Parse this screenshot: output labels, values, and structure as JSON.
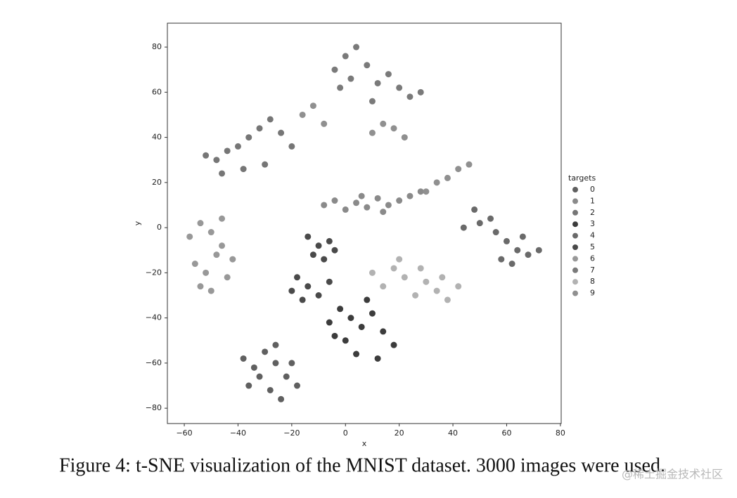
{
  "chart_data": {
    "type": "scatter",
    "x_label": "x",
    "y_label": "y",
    "xlim": [
      -66.3,
      80.3
    ],
    "ylim": [
      -86.8,
      90.6
    ],
    "xticks": [
      {
        "value": -60,
        "label": "−60"
      },
      {
        "value": -40,
        "label": "−40"
      },
      {
        "value": -20,
        "label": "−20"
      },
      0,
      20,
      40,
      60,
      80
    ],
    "yticks": [
      {
        "value": -80,
        "label": "−80"
      },
      {
        "value": -60,
        "label": "−60"
      },
      {
        "value": -40,
        "label": "−40"
      },
      {
        "value": -20,
        "label": "−20"
      },
      0,
      20,
      40,
      60,
      80
    ],
    "legend_title": "targets",
    "legend": "right",
    "series": [
      {
        "name": "0",
        "color": "#606060",
        "x": [
          -38,
          -34,
          -30,
          -26,
          -22,
          -18,
          -36,
          -28,
          -24,
          -20,
          -32,
          -26
        ],
        "y": [
          -58,
          -62,
          -55,
          -60,
          -66,
          -70,
          -70,
          -72,
          -76,
          -60,
          -66,
          -52
        ]
      },
      {
        "name": "1",
        "color": "#8a8a8a",
        "x": [
          -8,
          -4,
          0,
          4,
          8,
          12,
          16,
          20,
          24,
          28,
          6,
          14
        ],
        "y": [
          10,
          12,
          8,
          11,
          9,
          13,
          10,
          12,
          14,
          16,
          14,
          7
        ]
      },
      {
        "name": "2",
        "color": "#767676",
        "x": [
          -52,
          -48,
          -44,
          -40,
          -36,
          -32,
          -28,
          -24,
          -20,
          -30,
          -38,
          -46
        ],
        "y": [
          32,
          30,
          34,
          36,
          40,
          44,
          48,
          42,
          36,
          28,
          26,
          24
        ]
      },
      {
        "name": "3",
        "color": "#3c3c3c",
        "x": [
          -6,
          -2,
          2,
          6,
          10,
          14,
          18,
          4,
          8,
          0,
          12,
          -4
        ],
        "y": [
          -42,
          -36,
          -40,
          -44,
          -38,
          -46,
          -52,
          -56,
          -32,
          -50,
          -58,
          -48
        ]
      },
      {
        "name": "4",
        "color": "#6a6a6a",
        "x": [
          44,
          50,
          56,
          60,
          64,
          68,
          72,
          62,
          58,
          66,
          48,
          54
        ],
        "y": [
          0,
          2,
          -2,
          -6,
          -10,
          -12,
          -10,
          -16,
          -14,
          -4,
          8,
          4
        ]
      },
      {
        "name": "5",
        "color": "#4a4a4a",
        "x": [
          -14,
          -10,
          -6,
          -12,
          -8,
          -18,
          -14,
          -10,
          -6,
          -16,
          -20,
          -4
        ],
        "y": [
          -4,
          -8,
          -6,
          -12,
          -14,
          -22,
          -26,
          -30,
          -24,
          -32,
          -28,
          -10
        ]
      },
      {
        "name": "6",
        "color": "#989898",
        "x": [
          -58,
          -54,
          -50,
          -46,
          -42,
          -56,
          -52,
          -48,
          -44,
          -54,
          -50,
          -46
        ],
        "y": [
          -4,
          2,
          -2,
          -8,
          -14,
          -16,
          -20,
          -12,
          -22,
          -26,
          -28,
          4
        ]
      },
      {
        "name": "7",
        "color": "#7a7a7a",
        "x": [
          -4,
          0,
          4,
          2,
          8,
          12,
          16,
          20,
          24,
          28,
          10,
          -2
        ],
        "y": [
          70,
          76,
          80,
          66,
          72,
          64,
          68,
          62,
          58,
          60,
          56,
          62
        ]
      },
      {
        "name": "8",
        "color": "#b2b2b2",
        "x": [
          10,
          14,
          18,
          22,
          26,
          30,
          34,
          38,
          42,
          28,
          36,
          20
        ],
        "y": [
          -20,
          -26,
          -18,
          -22,
          -30,
          -24,
          -28,
          -32,
          -26,
          -18,
          -22,
          -14
        ]
      },
      {
        "name": "9",
        "color": "#909090",
        "x": [
          30,
          34,
          38,
          42,
          46,
          -16,
          -12,
          -8,
          10,
          14,
          18,
          22
        ],
        "y": [
          16,
          20,
          22,
          26,
          28,
          50,
          54,
          46,
          42,
          46,
          44,
          40
        ]
      }
    ]
  },
  "caption": "Figure 4: t-SNE visualization of the MNIST dataset. 3000 images were used.",
  "watermark": "@稀土掘金技术社区"
}
